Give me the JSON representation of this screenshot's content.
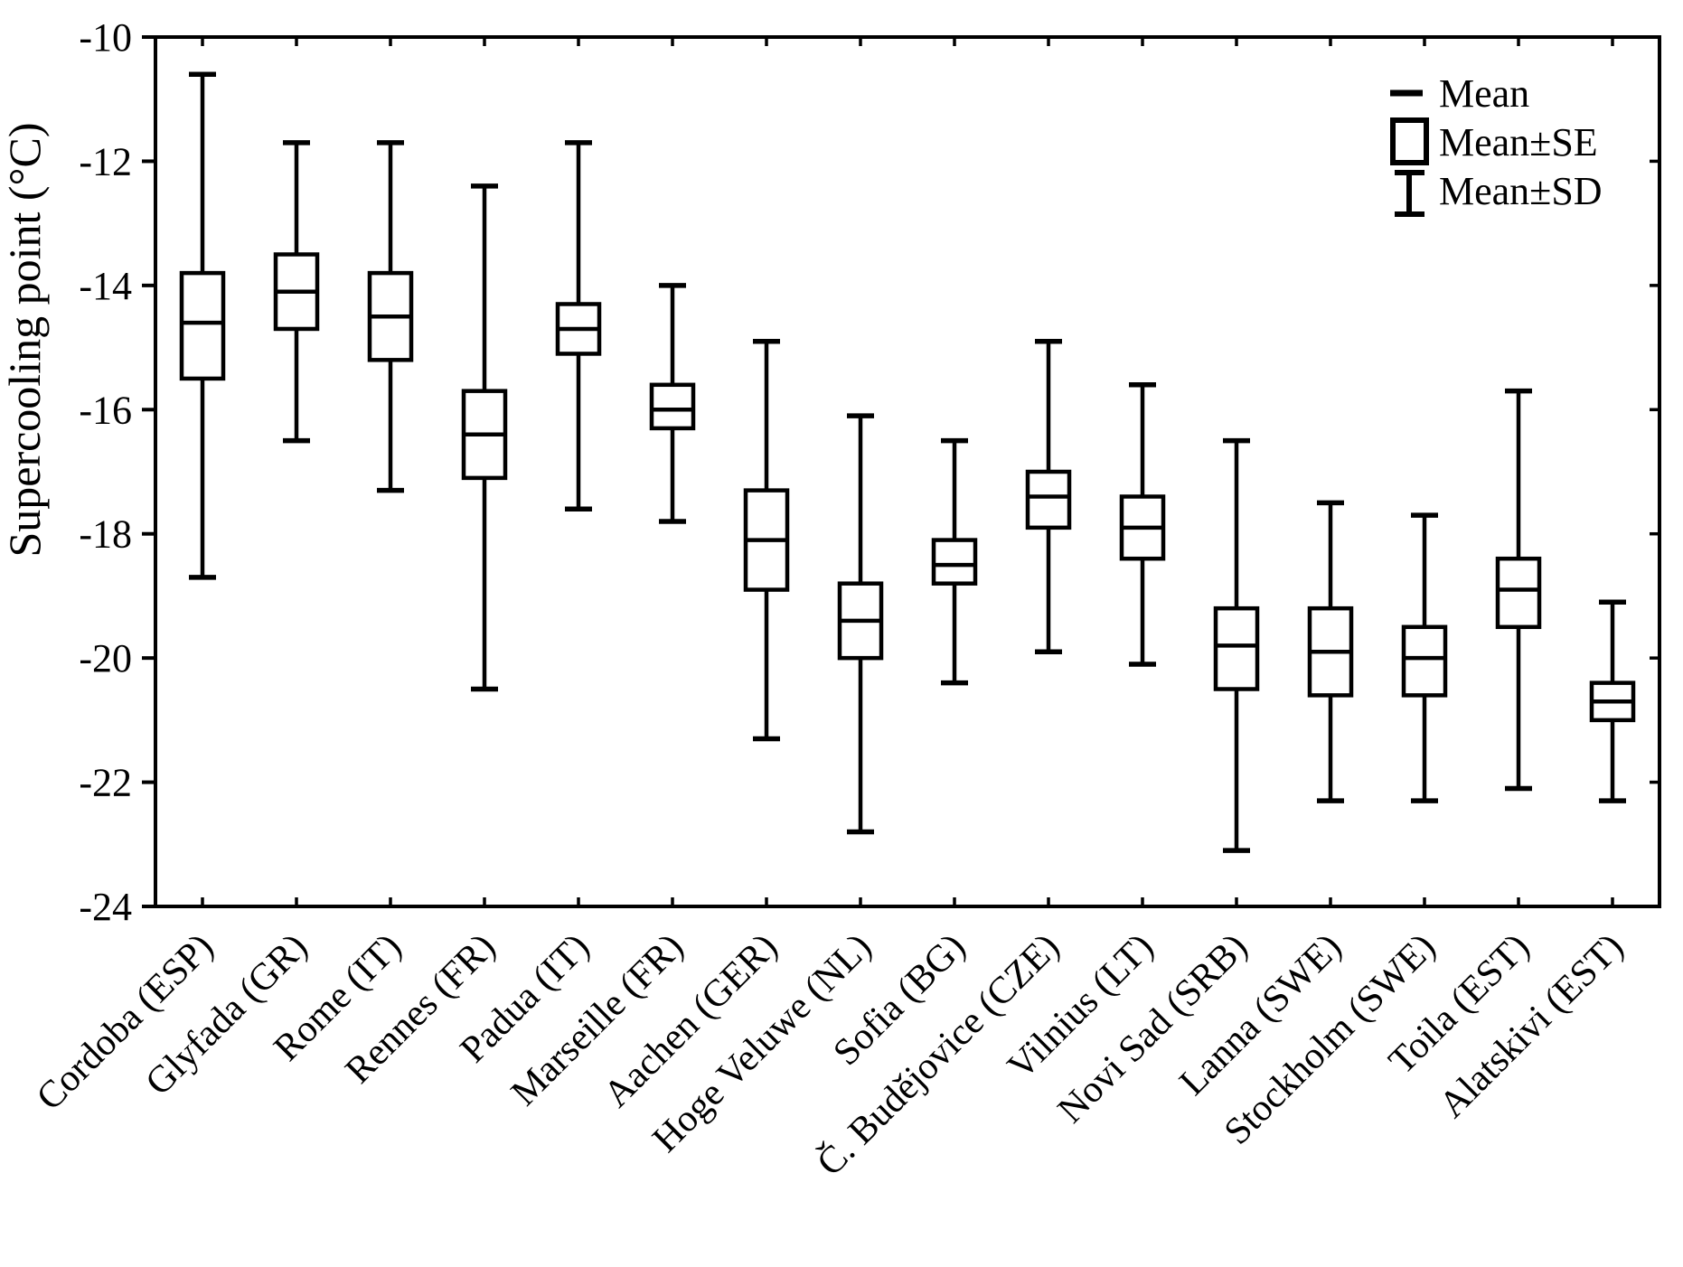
{
  "figure": {
    "background": "#ffffff",
    "line_color": "#000000"
  },
  "chart_data": {
    "type": "box",
    "title": "",
    "xlabel": "",
    "ylabel": "Supercooling point (°C)",
    "ylim": [
      -24,
      -10
    ],
    "yticks": [
      -10,
      -12,
      -14,
      -16,
      -18,
      -20,
      -22,
      -24
    ],
    "grid": false,
    "legend_position": "top-right-inside",
    "legend": [
      "Mean",
      "Mean±SE",
      "Mean±SD"
    ],
    "legend_symbols": [
      "mean-dash-icon",
      "se-box-icon",
      "sd-whisker-icon"
    ],
    "categories": [
      "Cordoba (ESP)",
      "Glyfada (GR)",
      "Rome (IT)",
      "Rennes (FR)",
      "Padua (IT)",
      "Marseille (FR)",
      "Aachen (GER)",
      "Hoge Veluwe (NL)",
      "Sofia (BG)",
      "Č. Budějovice (CZE)",
      "Vilnius (LT)",
      "Novi Sad (SRB)",
      "Lanna (SWE)",
      "Stockholm (SWE)",
      "Toila (EST)",
      "Alatskivi (EST)"
    ],
    "series": [
      {
        "label": "Cordoba (ESP)",
        "mean": -14.6,
        "se": [
          -13.8,
          -15.5
        ],
        "sd": [
          -10.6,
          -18.7
        ]
      },
      {
        "label": "Glyfada (GR)",
        "mean": -14.1,
        "se": [
          -13.5,
          -14.7
        ],
        "sd": [
          -11.7,
          -16.5
        ]
      },
      {
        "label": "Rome (IT)",
        "mean": -14.5,
        "se": [
          -13.8,
          -15.2
        ],
        "sd": [
          -11.7,
          -17.3
        ]
      },
      {
        "label": "Rennes (FR)",
        "mean": -16.4,
        "se": [
          -15.7,
          -17.1
        ],
        "sd": [
          -12.4,
          -20.5
        ]
      },
      {
        "label": "Padua (IT)",
        "mean": -14.7,
        "se": [
          -14.3,
          -15.1
        ],
        "sd": [
          -11.7,
          -17.6
        ]
      },
      {
        "label": "Marseille (FR)",
        "mean": -16.0,
        "se": [
          -15.6,
          -16.3
        ],
        "sd": [
          -14.0,
          -17.8
        ]
      },
      {
        "label": "Aachen (GER)",
        "mean": -18.1,
        "se": [
          -17.3,
          -18.9
        ],
        "sd": [
          -14.9,
          -21.3
        ]
      },
      {
        "label": "Hoge Veluwe (NL)",
        "mean": -19.4,
        "se": [
          -18.8,
          -20.0
        ],
        "sd": [
          -16.1,
          -22.8
        ]
      },
      {
        "label": "Sofia (BG)",
        "mean": -18.5,
        "se": [
          -18.1,
          -18.8
        ],
        "sd": [
          -16.5,
          -20.4
        ]
      },
      {
        "label": "Č. Budějovice (CZE)",
        "mean": -17.4,
        "se": [
          -17.0,
          -17.9
        ],
        "sd": [
          -14.9,
          -19.9
        ]
      },
      {
        "label": "Vilnius (LT)",
        "mean": -17.9,
        "se": [
          -17.4,
          -18.4
        ],
        "sd": [
          -15.6,
          -20.1
        ]
      },
      {
        "label": "Novi Sad (SRB)",
        "mean": -19.8,
        "se": [
          -19.2,
          -20.5
        ],
        "sd": [
          -16.5,
          -23.1
        ]
      },
      {
        "label": "Lanna (SWE)",
        "mean": -19.9,
        "se": [
          -19.2,
          -20.6
        ],
        "sd": [
          -17.5,
          -22.3
        ]
      },
      {
        "label": "Stockholm (SWE)",
        "mean": -20.0,
        "se": [
          -19.5,
          -20.6
        ],
        "sd": [
          -17.7,
          -22.3
        ]
      },
      {
        "label": "Toila (EST)",
        "mean": -18.9,
        "se": [
          -18.4,
          -19.5
        ],
        "sd": [
          -15.7,
          -22.1
        ]
      },
      {
        "label": "Alatskivi (EST)",
        "mean": -20.7,
        "se": [
          -20.4,
          -21.0
        ],
        "sd": [
          -19.1,
          -22.3
        ]
      }
    ]
  }
}
